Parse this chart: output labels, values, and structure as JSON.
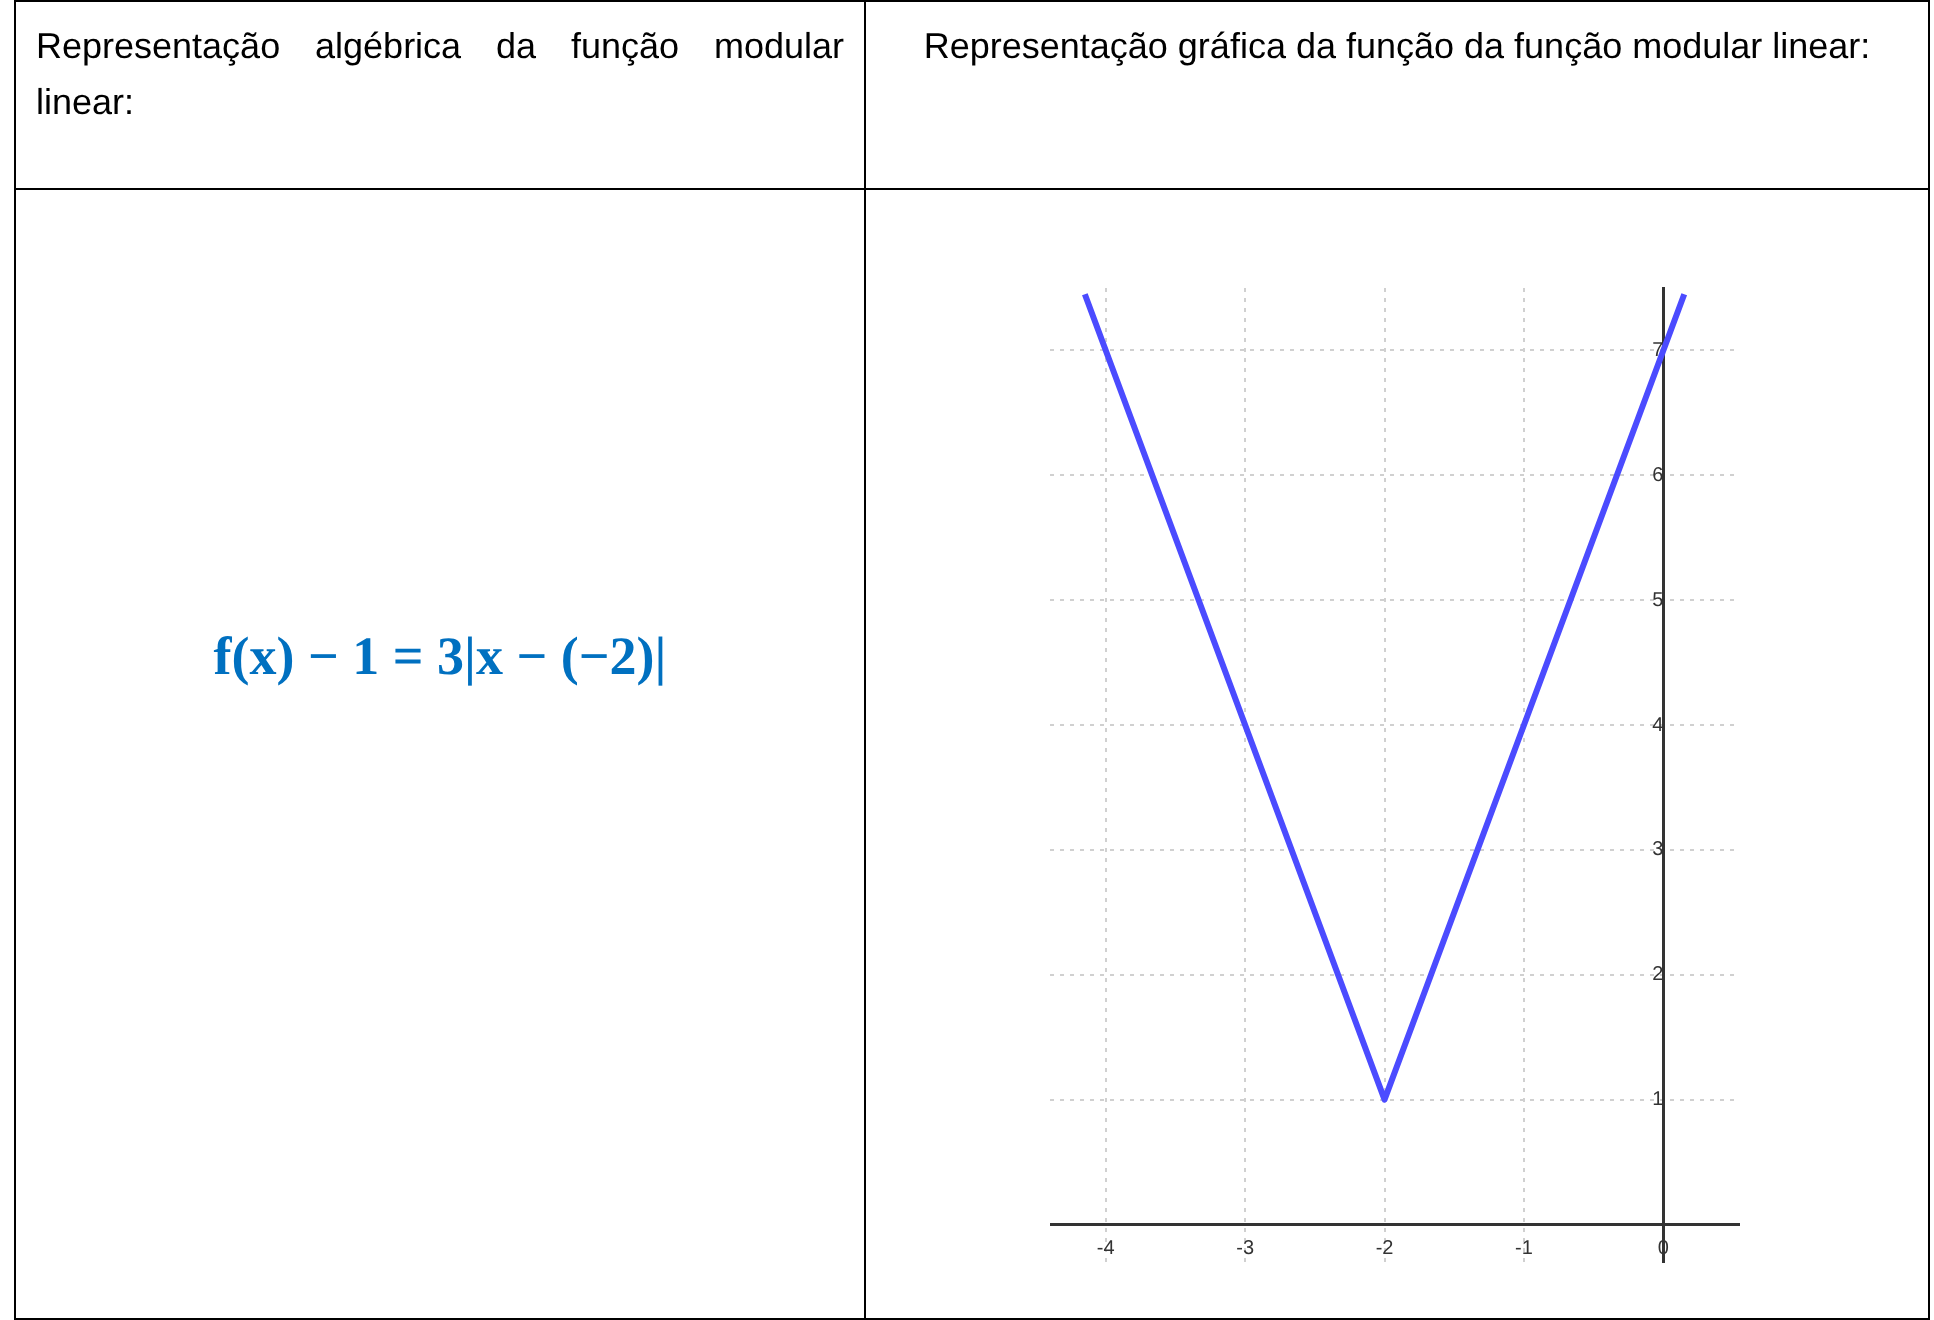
{
  "chart_data": {
    "type": "line",
    "title": "Representação gráfica da função da função modular linear:",
    "annotations": [
      "Representação algébrica da função modular linear:",
      "f(x) − 1 = 3|x − (−2)|"
    ],
    "x": [
      -4.15,
      -2,
      0.15
    ],
    "series": [
      {
        "color": "#4b4bff",
        "values": [
          7.45,
          1,
          7.45
        ]
      }
    ],
    "xlim": [
      -4.4,
      0.55
    ],
    "ylim": [
      -0.3,
      7.5
    ],
    "xticks": [
      -4,
      -3,
      -2,
      -1,
      0
    ],
    "yticks": [
      1,
      2,
      3,
      4,
      5,
      6,
      7
    ],
    "grid": true,
    "marker": "none",
    "line_style": "solid",
    "legend": false
  }
}
